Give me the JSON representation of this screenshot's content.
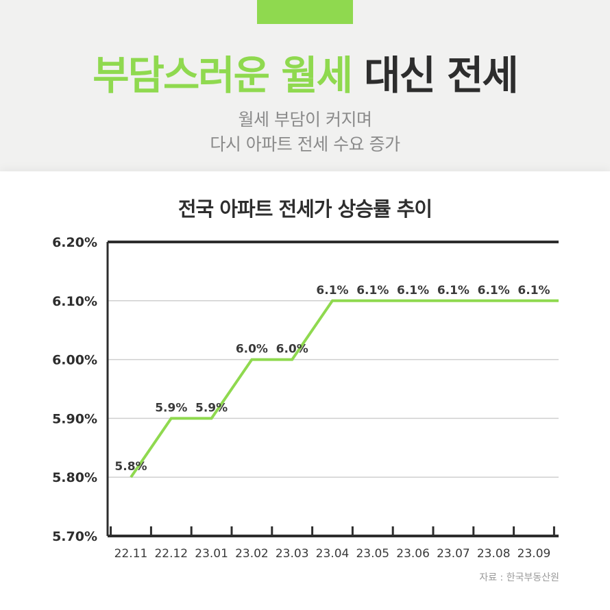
{
  "header": {
    "title_green": "부담스러운 월세",
    "title_dark": "대신 전세",
    "subtitle_line1": "월세 부담이 커지며",
    "subtitle_line2": "다시 아파트 전세 수요 증가"
  },
  "source": "자료 : 한국부동산원",
  "colors": {
    "accent": "#8fd94f",
    "text_dark": "#2d2d2d",
    "grid": "#cfcfcf"
  },
  "chart_data": {
    "type": "line",
    "title": "전국 아파트 전세가 상승률 추이",
    "categories": [
      "22.11",
      "22.12",
      "23.01",
      "23.02",
      "23.03",
      "23.04",
      "23.05",
      "23.06",
      "23.07",
      "23.08",
      "23.09"
    ],
    "values": [
      5.8,
      5.9,
      5.9,
      6.0,
      6.0,
      6.1,
      6.1,
      6.1,
      6.1,
      6.1,
      6.1
    ],
    "data_labels": [
      "5.8%",
      "5.9%",
      "5.9%",
      "6.0%",
      "6.0%",
      "6.1%",
      "6.1%",
      "6.1%",
      "6.1%",
      "6.1%",
      "6.1%"
    ],
    "y_ticks": [
      5.7,
      5.8,
      5.9,
      6.0,
      6.1,
      6.2
    ],
    "y_tick_labels": [
      "5.70%",
      "5.80%",
      "5.90%",
      "6.00%",
      "6.10%",
      "6.20%"
    ],
    "ylim": [
      5.7,
      6.2
    ],
    "xlabel": "",
    "ylabel": "",
    "grid": true,
    "line_style": "step"
  }
}
